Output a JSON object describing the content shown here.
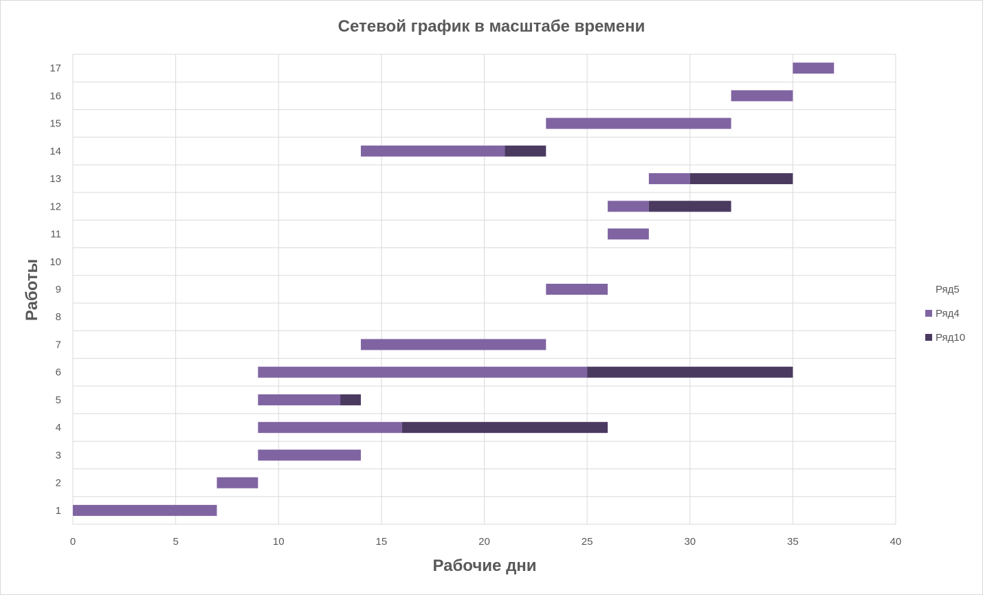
{
  "chart_data": {
    "type": "bar",
    "orientation": "horizontal",
    "stacked": true,
    "title": "Сетевой график в масштабе времени",
    "xlabel": "Рабочие дни",
    "ylabel": "Работы",
    "xlim": [
      0,
      40
    ],
    "x_ticks": [
      0,
      5,
      10,
      15,
      20,
      25,
      30,
      35,
      40
    ],
    "categories": [
      "1",
      "2",
      "3",
      "4",
      "5",
      "6",
      "7",
      "8",
      "9",
      "10",
      "11",
      "12",
      "13",
      "14",
      "15",
      "16",
      "17"
    ],
    "grid": true,
    "legend_position": "right",
    "series": [
      {
        "name": "Ряд5",
        "color": "none",
        "values": [
          0,
          7,
          9,
          9,
          9,
          9,
          14,
          0,
          23,
          0,
          26,
          26,
          28,
          14,
          23,
          32,
          35
        ]
      },
      {
        "name": "Ряд4",
        "color": "#8064a2",
        "values": [
          7,
          2,
          5,
          7,
          4,
          16,
          9,
          0,
          3,
          0,
          2,
          2,
          2,
          7,
          9,
          3,
          2
        ]
      },
      {
        "name": "Ряд10",
        "color": "#4b3a60",
        "values": [
          0,
          0,
          0,
          10,
          1,
          10,
          0,
          0,
          0,
          0,
          0,
          4,
          5,
          2,
          0,
          0,
          0
        ]
      }
    ]
  }
}
